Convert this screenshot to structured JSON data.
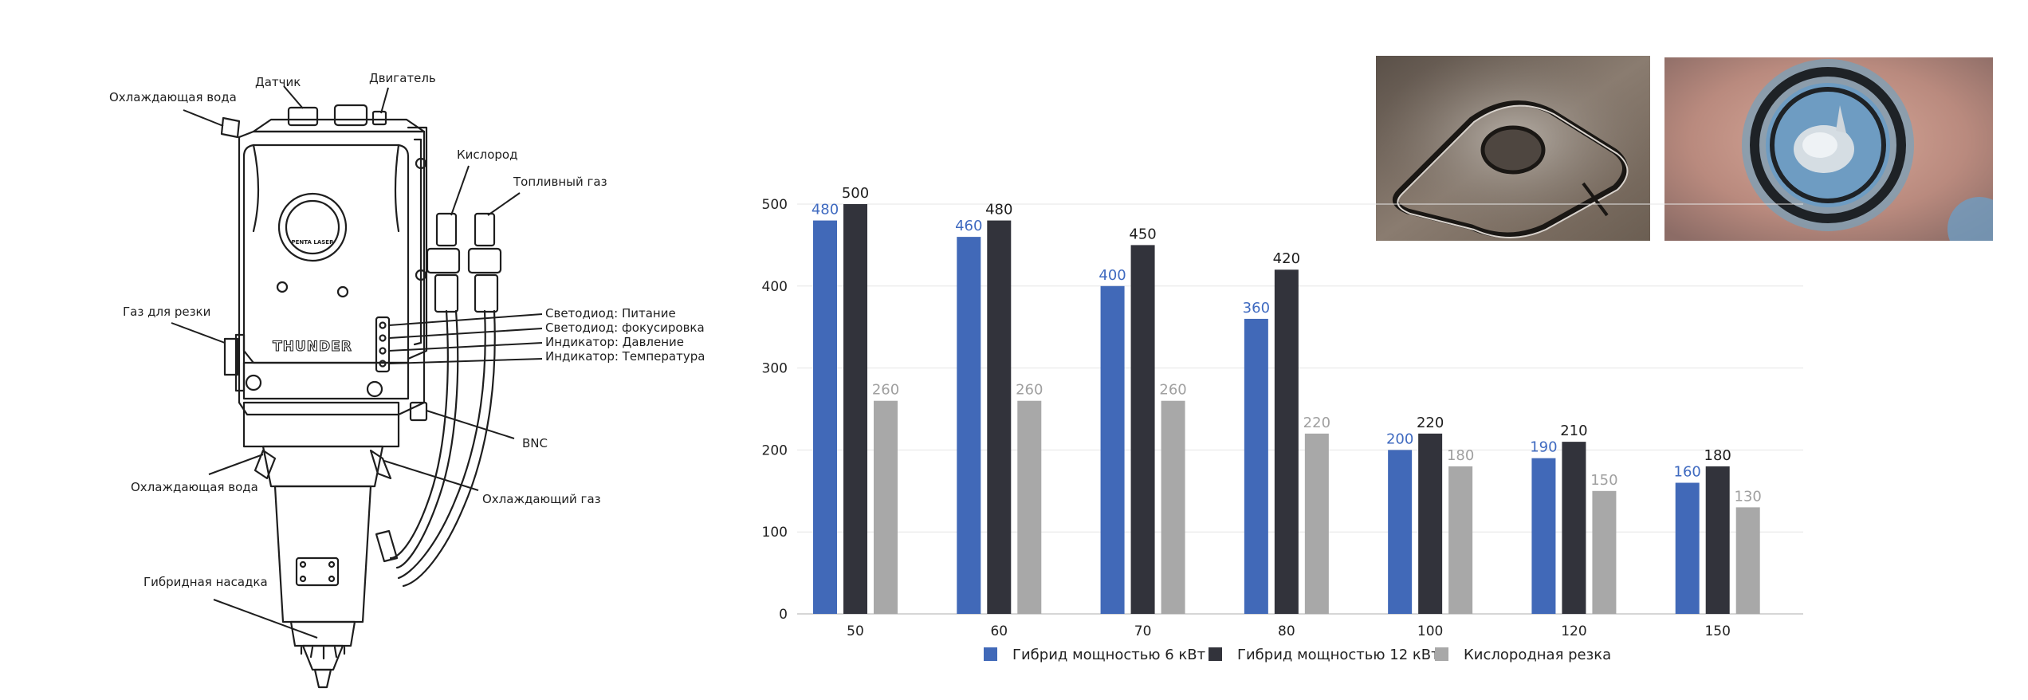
{
  "diagram": {
    "callouts": [
      "Охлаждающая вода",
      "Датчик",
      "Двигатель",
      "Кислород",
      "Топливный газ",
      "Газ для резки",
      "Светодиод: Питание",
      "Светодиод: фокусировка",
      "Индикатор: Давление",
      "Индикатор: Температура",
      "BNC",
      "Охлаждающая вода",
      "Охлаждающий газ",
      "Гибридная насадка"
    ],
    "brand_text": "THUNDER",
    "logo_text": "PENTA LASER"
  },
  "photos": [
    {
      "subject": "cut-square-plate"
    },
    {
      "subject": "cut-ring-plate"
    }
  ],
  "chart_data": {
    "type": "bar",
    "categories": [
      "50",
      "60",
      "70",
      "80",
      "100",
      "120",
      "150"
    ],
    "series": [
      {
        "name": "Гибрид мощностью 6 кВт",
        "values": [
          480,
          460,
          400,
          360,
          200,
          190,
          160
        ],
        "color": "#4169b8",
        "label_color": "#3f6ac0"
      },
      {
        "name": "Гибрид мощностью 12 кВт",
        "values": [
          500,
          480,
          450,
          420,
          220,
          210,
          180
        ],
        "color": "#32333b",
        "label_color": "#1e1e1e"
      },
      {
        "name": "Кислородная резка",
        "values": [
          260,
          260,
          260,
          220,
          180,
          150,
          130
        ],
        "color": "#a8a8a8",
        "label_color": "#a0a0a0"
      }
    ],
    "yticks": [
      0,
      100,
      200,
      300,
      400,
      500
    ],
    "ylim": [
      0,
      500
    ],
    "grid": true,
    "legend_position": "bottom",
    "title": "",
    "xlabel": "",
    "ylabel": ""
  }
}
